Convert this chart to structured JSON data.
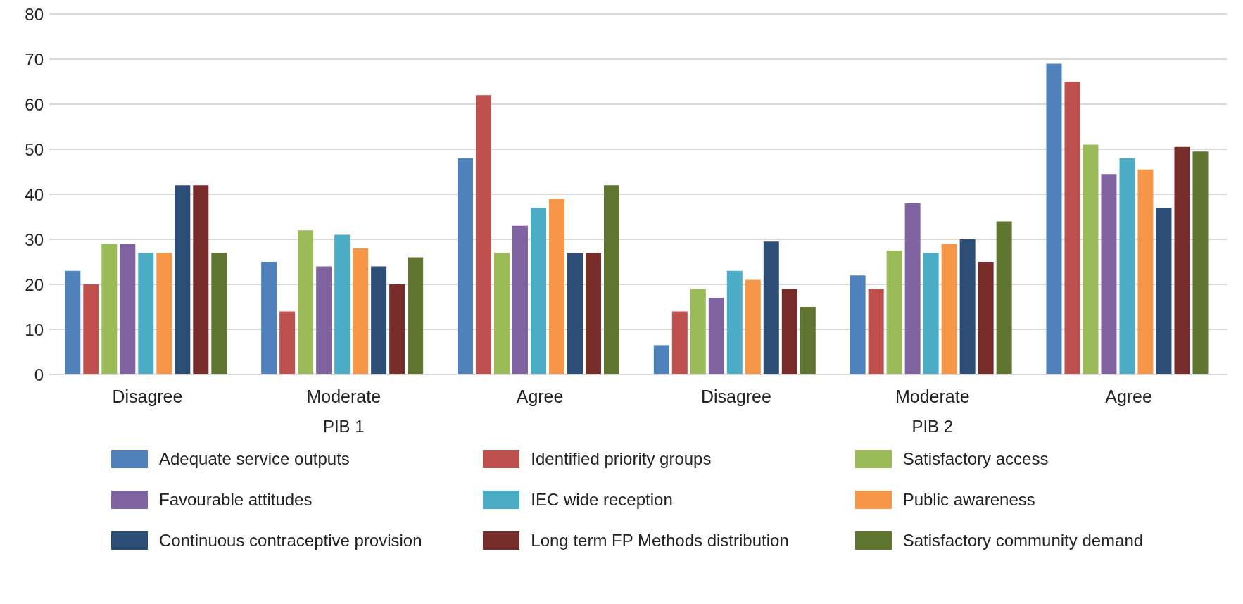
{
  "chart_data": {
    "type": "bar",
    "categories": [
      "Disagree",
      "Moderate",
      "Agree",
      "Disagree",
      "Moderate",
      "Agree"
    ],
    "annotations": [
      "PIB 1",
      "PIB 2"
    ],
    "ylim": [
      0,
      80
    ],
    "yticks": [
      0,
      10,
      20,
      30,
      40,
      50,
      60,
      70,
      80
    ],
    "grid": "y",
    "legend": "bottom",
    "series": [
      {
        "name": "Adequate service outputs",
        "color": "#4f81bd",
        "values": [
          23,
          25,
          48,
          6.5,
          22,
          69
        ]
      },
      {
        "name": "Identified priority groups",
        "color": "#c0504d",
        "values": [
          20,
          14,
          62,
          14,
          19,
          65
        ]
      },
      {
        "name": "Satisfactory access",
        "color": "#9bbb59",
        "values": [
          29,
          32,
          27,
          19,
          27.5,
          51
        ]
      },
      {
        "name": "Favourable attitudes",
        "color": "#8064a2",
        "values": [
          29,
          24,
          33,
          17,
          38,
          44.5
        ]
      },
      {
        "name": "IEC wide reception",
        "color": "#4bacc6",
        "values": [
          27,
          31,
          37,
          23,
          27,
          48
        ]
      },
      {
        "name": "Public awareness",
        "color": "#f79646",
        "values": [
          27,
          28,
          39,
          21,
          29,
          45.5
        ]
      },
      {
        "name": "Continuous contraceptive provision",
        "color": "#2c4d75",
        "values": [
          42,
          24,
          27,
          29.5,
          30,
          37
        ]
      },
      {
        "name": "Long term FP Methods distribution",
        "color": "#772c2a",
        "values": [
          42,
          20,
          27,
          19,
          25,
          50.5
        ]
      },
      {
        "name": "Satisfactory community demand",
        "color": "#5f7530",
        "values": [
          27,
          26,
          42,
          15,
          34,
          49.5
        ]
      }
    ]
  }
}
